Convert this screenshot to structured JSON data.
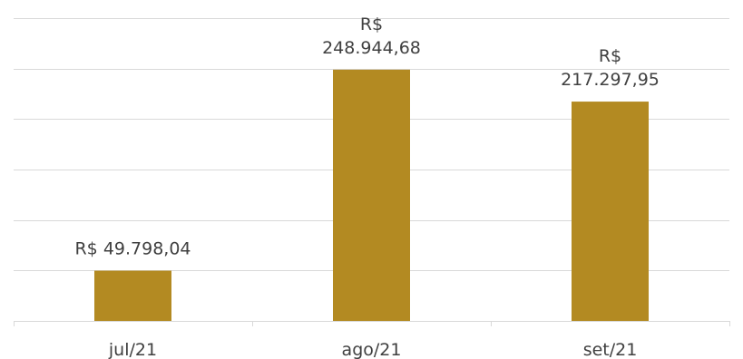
{
  "chart_data": {
    "type": "bar",
    "title": "",
    "xlabel": "",
    "ylabel": "",
    "categories": [
      "jul/21",
      "ago/21",
      "set/21"
    ],
    "values": [
      49798.04,
      248944.68,
      217297.95
    ],
    "data_labels": [
      "R$ 49.798,04",
      "R$ 248.944,68",
      "R$ 217.297,95"
    ],
    "ylim": [
      0,
      300000
    ],
    "grid_step": 50000,
    "grid": true,
    "legend": "none",
    "bar_color": "#B38A22",
    "gridline_color": "#D9D9D9",
    "text_color": "#404040"
  }
}
